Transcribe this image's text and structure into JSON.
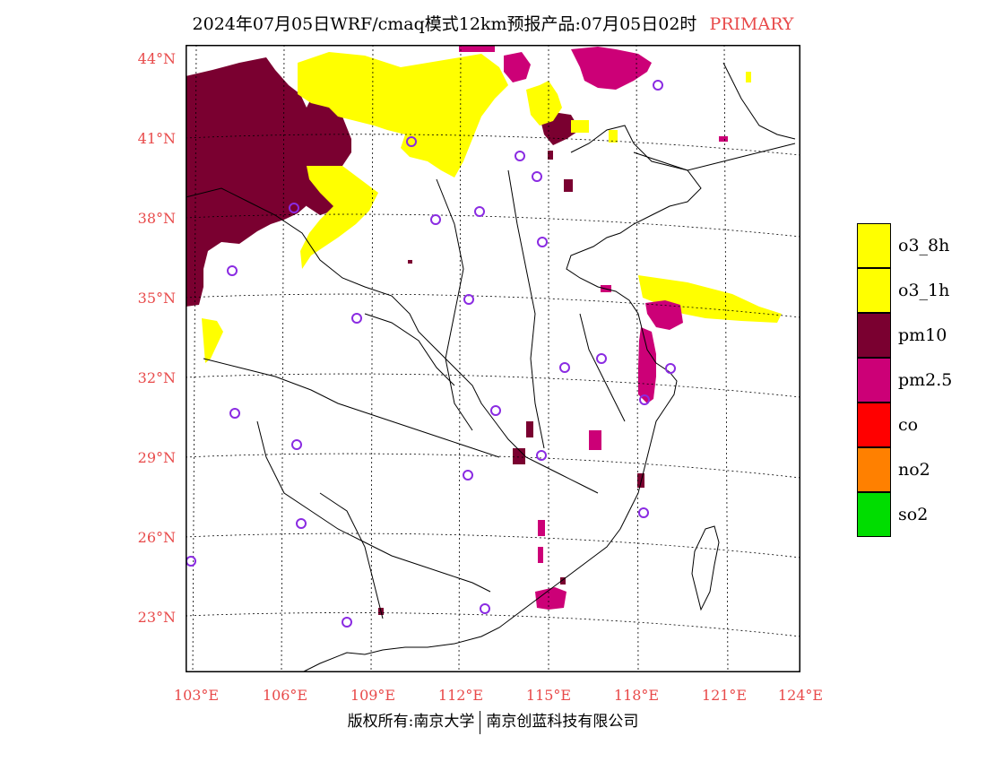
{
  "title": {
    "text": "2024年07月05日WRF/cmaq模式12km预报产品:07月05日02时",
    "tag": "PRIMARY"
  },
  "colors": {
    "accent_red": "#e84a4a",
    "o3_8h": "#ffff00",
    "o3_1h": "#ffff00",
    "pm10": "#7a0030",
    "pm25": "#cc0077",
    "co": "#ff0000",
    "no2": "#ff8000",
    "so2": "#00dd00",
    "station_marker": "#8a2be2"
  },
  "axes": {
    "lat_labels": [
      "44°N",
      "41°N",
      "38°N",
      "35°N",
      "32°N",
      "29°N",
      "26°N",
      "23°N"
    ],
    "lon_labels": [
      "103°E",
      "106°E",
      "109°E",
      "112°E",
      "115°E",
      "118°E",
      "121°E",
      "124°E"
    ]
  },
  "legend": [
    {
      "label": "o3_8h",
      "color": "#ffff00"
    },
    {
      "label": "o3_1h",
      "color": "#ffff00"
    },
    {
      "label": "pm10",
      "color": "#7a0030"
    },
    {
      "label": "pm2.5",
      "color": "#cc0077"
    },
    {
      "label": "co",
      "color": "#ff0000"
    },
    {
      "label": "no2",
      "color": "#ff8000"
    },
    {
      "label": "so2",
      "color": "#00dd00"
    }
  ],
  "footer": {
    "left": "版权所有:南京大学",
    "right": "南京创蓝科技有限公司"
  }
}
